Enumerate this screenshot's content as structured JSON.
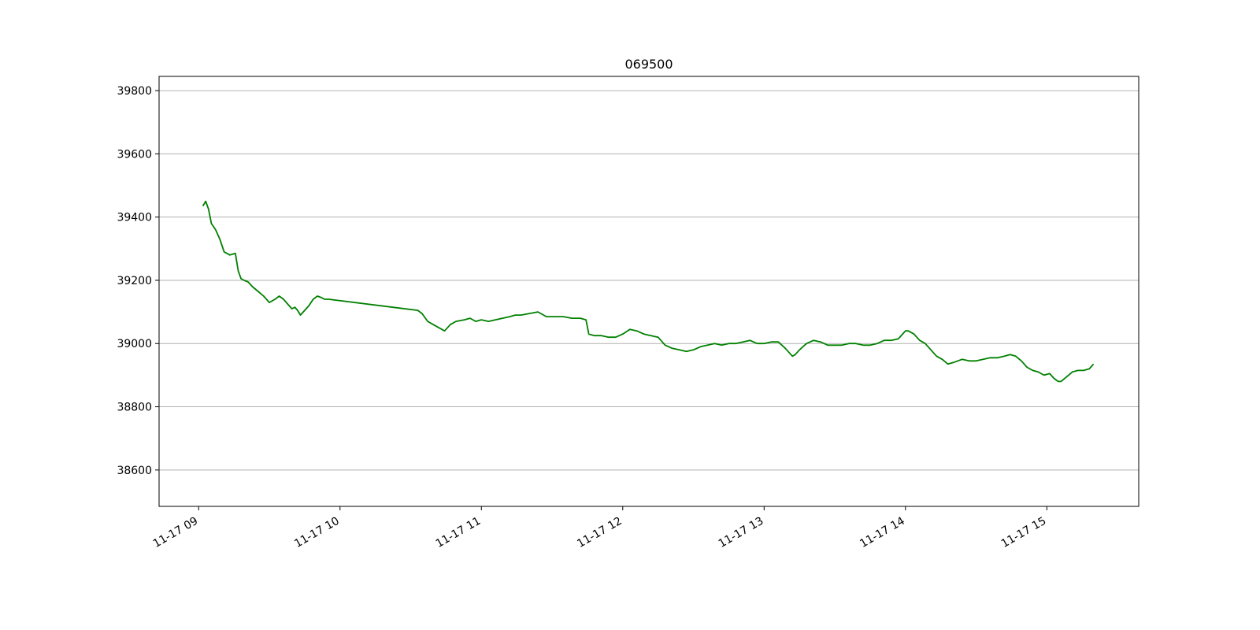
{
  "chart_data": {
    "type": "line",
    "title": "069500",
    "xlabel": "",
    "ylabel": "",
    "x_tick_labels": [
      "11-17 09",
      "11-17 10",
      "11-17 11",
      "11-17 12",
      "11-17 13",
      "11-17 14",
      "11-17 15"
    ],
    "x_tick_hours": [
      9,
      10,
      11,
      12,
      13,
      14,
      15
    ],
    "xlim_hours": [
      8.72,
      15.65
    ],
    "y_ticks": [
      38600,
      38800,
      39000,
      39200,
      39400,
      39600,
      39800
    ],
    "ylim": [
      38485,
      39845
    ],
    "grid": "y-axis horizontal gridlines",
    "line_color": "#008000",
    "series": [
      {
        "x_hours": [
          9.03,
          9.05,
          9.07,
          9.09,
          9.12,
          9.15,
          9.18,
          9.22,
          9.26,
          9.28,
          9.3,
          9.32,
          9.35,
          9.38,
          9.42,
          9.46,
          9.5,
          9.54,
          9.57,
          9.6,
          9.62,
          9.64,
          9.66,
          9.68,
          9.7,
          9.72,
          9.74,
          9.76,
          9.78,
          9.81,
          9.84,
          9.87,
          9.89,
          9.92,
          10.55,
          10.58,
          10.62,
          10.66,
          10.7,
          10.74,
          10.78,
          10.82,
          10.88,
          10.92,
          10.96,
          11.0,
          11.05,
          11.1,
          11.15,
          11.2,
          11.24,
          11.28,
          11.34,
          11.4,
          11.46,
          11.52,
          11.58,
          11.64,
          11.7,
          11.74,
          11.76,
          11.8,
          11.85,
          11.9,
          11.95,
          12.0,
          12.05,
          12.1,
          12.15,
          12.2,
          12.25,
          12.3,
          12.35,
          12.4,
          12.45,
          12.5,
          12.55,
          12.6,
          12.65,
          12.7,
          12.75,
          12.8,
          12.85,
          12.9,
          12.95,
          13.0,
          13.05,
          13.1,
          13.15,
          13.18,
          13.2,
          13.22,
          13.25,
          13.3,
          13.35,
          13.4,
          13.45,
          13.5,
          13.55,
          13.6,
          13.65,
          13.7,
          13.75,
          13.8,
          13.85,
          13.9,
          13.95,
          14.0,
          14.02,
          14.06,
          14.1,
          14.14,
          14.18,
          14.22,
          14.26,
          14.3,
          14.34,
          14.4,
          14.45,
          14.5,
          14.55,
          14.6,
          14.65,
          14.7,
          14.74,
          14.78,
          14.82,
          14.86,
          14.9,
          14.94,
          14.98,
          15.02,
          15.05,
          15.08,
          15.1,
          15.14,
          15.18,
          15.22,
          15.26,
          15.3,
          15.33
        ],
        "values": [
          39435,
          39450,
          39425,
          39380,
          39360,
          39330,
          39290,
          39280,
          39285,
          39230,
          39205,
          39200,
          39195,
          39180,
          39165,
          39150,
          39130,
          39140,
          39150,
          39140,
          39130,
          39120,
          39110,
          39115,
          39105,
          39090,
          39100,
          39110,
          39120,
          39140,
          39150,
          39145,
          39140,
          39140,
          39105,
          39095,
          39070,
          39060,
          39050,
          39040,
          39060,
          39070,
          39075,
          39080,
          39070,
          39075,
          39070,
          39075,
          39080,
          39085,
          39090,
          39090,
          39095,
          39100,
          39085,
          39085,
          39085,
          39080,
          39080,
          39075,
          39030,
          39025,
          39025,
          39020,
          39020,
          39030,
          39045,
          39040,
          39030,
          39025,
          39020,
          38995,
          38985,
          38980,
          38975,
          38980,
          38990,
          38995,
          39000,
          38995,
          39000,
          39000,
          39005,
          39010,
          39000,
          39000,
          39005,
          39005,
          38985,
          38970,
          38960,
          38965,
          38980,
          39000,
          39010,
          39005,
          38995,
          38995,
          38995,
          39000,
          39000,
          38995,
          38995,
          39000,
          39010,
          39010,
          39015,
          39040,
          39040,
          39030,
          39010,
          39000,
          38980,
          38960,
          38950,
          38935,
          38940,
          38950,
          38945,
          38945,
          38950,
          38955,
          38955,
          38960,
          38965,
          38960,
          38945,
          38925,
          38915,
          38910,
          38900,
          38905,
          38890,
          38880,
          38880,
          38895,
          38910,
          38915,
          38915,
          38920,
          38935
        ]
      }
    ]
  }
}
